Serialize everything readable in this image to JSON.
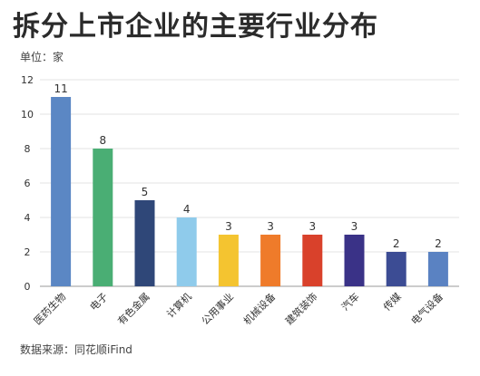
{
  "chart_data": {
    "type": "bar",
    "title": "拆分上市企业的主要行业分布",
    "unit_label": "单位：家",
    "source": "数据来源：同花顺iFind",
    "xlabel": "",
    "ylabel": "",
    "ylim": [
      0,
      12
    ],
    "yticks": [
      0,
      2,
      4,
      6,
      8,
      10,
      12
    ],
    "grid": true,
    "legend": "none",
    "categories": [
      "医药生物",
      "电子",
      "有色金属",
      "计算机",
      "公用事业",
      "机械设备",
      "建筑装饰",
      "汽车",
      "传媒",
      "电气设备"
    ],
    "values": [
      11,
      8,
      5,
      4,
      3,
      3,
      3,
      3,
      2,
      2
    ],
    "colors": [
      "#5b87c4",
      "#4aae74",
      "#2f4778",
      "#8fcbeb",
      "#f4c430",
      "#ef7b2a",
      "#d9412b",
      "#3a3287",
      "#3c4c94",
      "#5a82c2"
    ]
  }
}
